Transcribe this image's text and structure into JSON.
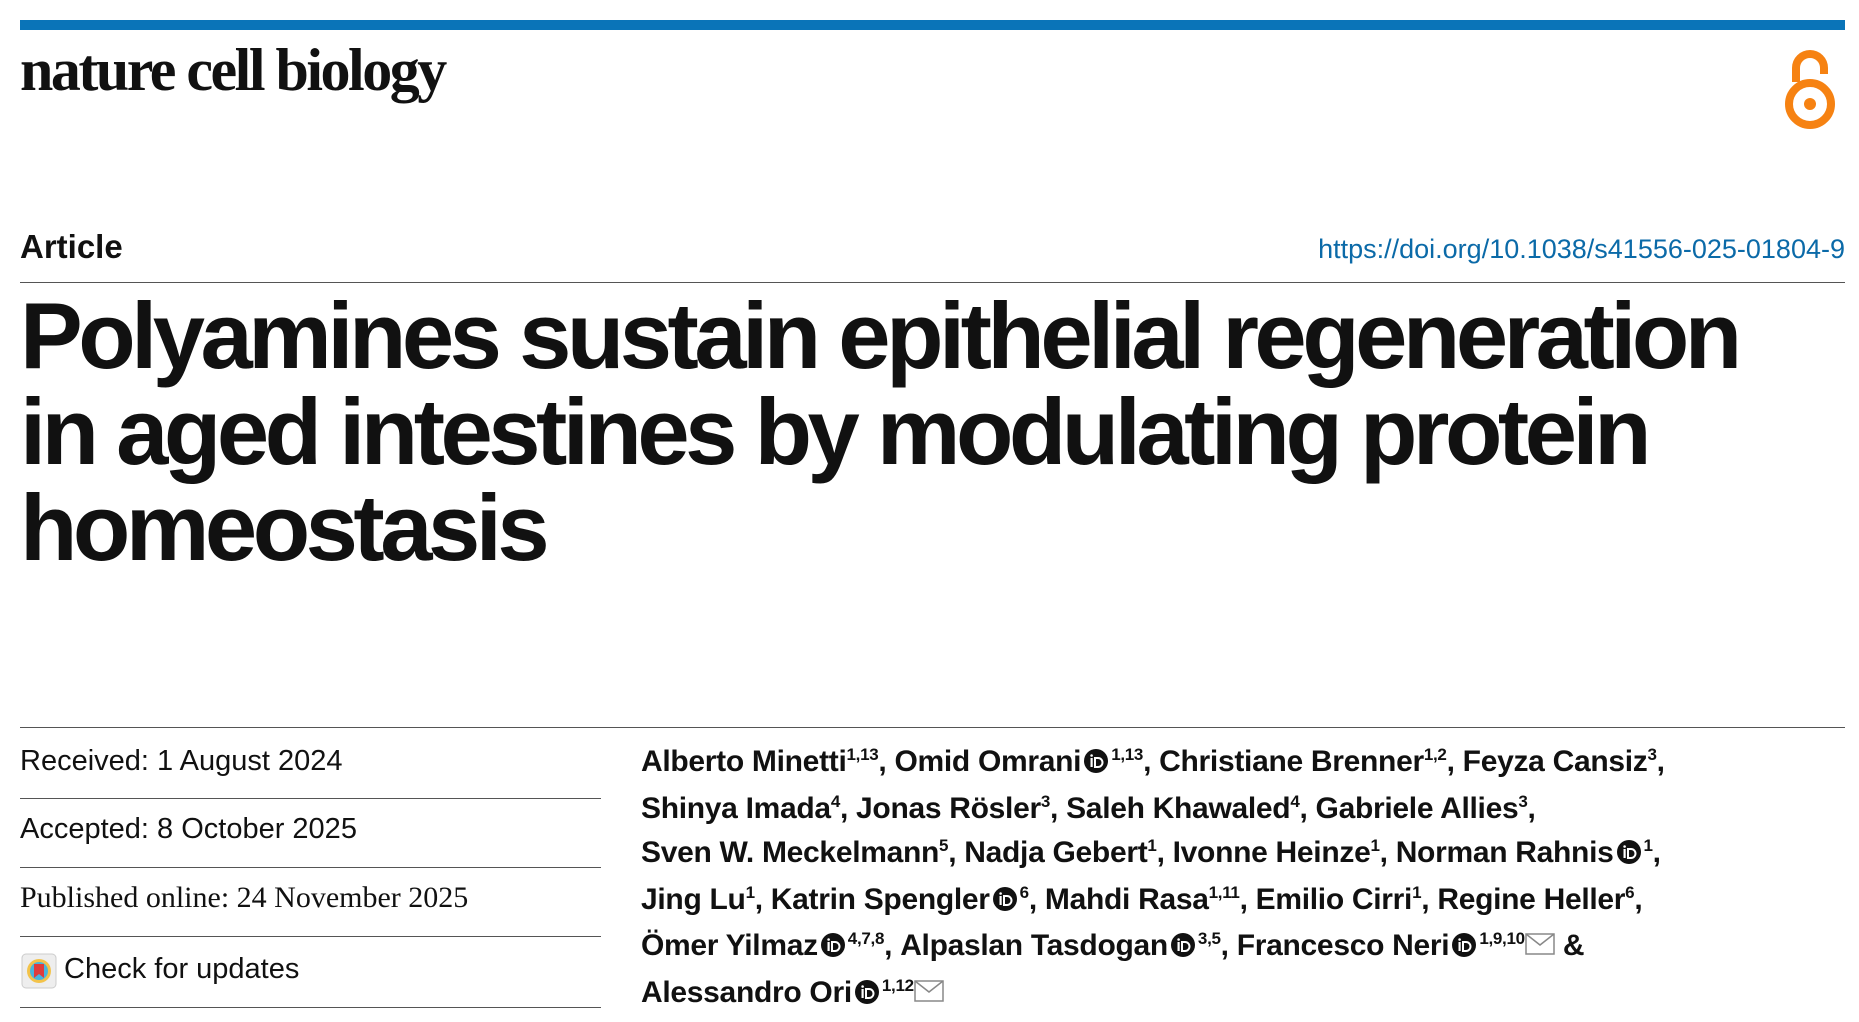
{
  "header": {
    "journal": "nature cell biology",
    "article_type": "Article",
    "doi": "https://doi.org/10.1038/s41556-025-01804-9"
  },
  "title_lines": [
    "Polyamines sustain epithelial regeneration",
    "in aged intestines by modulating protein",
    "homeostasis"
  ],
  "dates": {
    "received": "Received: 1 August 2024",
    "accepted": "Accepted: 8 October 2025",
    "published": "Published online: 24 November 2025",
    "check_updates": "Check for updates"
  },
  "author_separator": ", ",
  "author_conjunction": "&",
  "authors": [
    {
      "name": "Alberto Minetti",
      "affiliations": "1,13"
    },
    {
      "name": "Omid Omrani",
      "affiliations": "1,13",
      "orcid": true
    },
    {
      "name": "Christiane Brenner",
      "affiliations": "1,2"
    },
    {
      "name": "Feyza Cansiz",
      "affiliations": "3"
    },
    {
      "name": "Shinya Imada",
      "affiliations": "4"
    },
    {
      "name": "Jonas Rösler",
      "affiliations": "3"
    },
    {
      "name": "Saleh Khawaled",
      "affiliations": "4"
    },
    {
      "name": "Gabriele Allies",
      "affiliations": "3"
    },
    {
      "name": "Sven W. Meckelmann",
      "affiliations": "5"
    },
    {
      "name": "Nadja Gebert",
      "affiliations": "1"
    },
    {
      "name": "Ivonne Heinze",
      "affiliations": "1"
    },
    {
      "name": "Norman Rahnis",
      "affiliations": "1",
      "orcid": true
    },
    {
      "name": "Jing Lu",
      "affiliations": "1"
    },
    {
      "name": "Katrin Spengler",
      "affiliations": "6",
      "orcid": true
    },
    {
      "name": "Mahdi Rasa",
      "affiliations": "1,11"
    },
    {
      "name": "Emilio Cirri",
      "affiliations": "1"
    },
    {
      "name": "Regine Heller",
      "affiliations": "6"
    },
    {
      "name": "Ömer Yilmaz",
      "affiliations": "4,7,8",
      "orcid": true
    },
    {
      "name": "Alpaslan Tasdogan",
      "affiliations": "3,5",
      "orcid": true
    },
    {
      "name": "Francesco Neri",
      "affiliations": "1,9,10",
      "orcid": true,
      "corresponding": true
    },
    {
      "name": "Alessandro Ori",
      "affiliations": "1,12",
      "orcid": true,
      "corresponding": true
    }
  ]
}
